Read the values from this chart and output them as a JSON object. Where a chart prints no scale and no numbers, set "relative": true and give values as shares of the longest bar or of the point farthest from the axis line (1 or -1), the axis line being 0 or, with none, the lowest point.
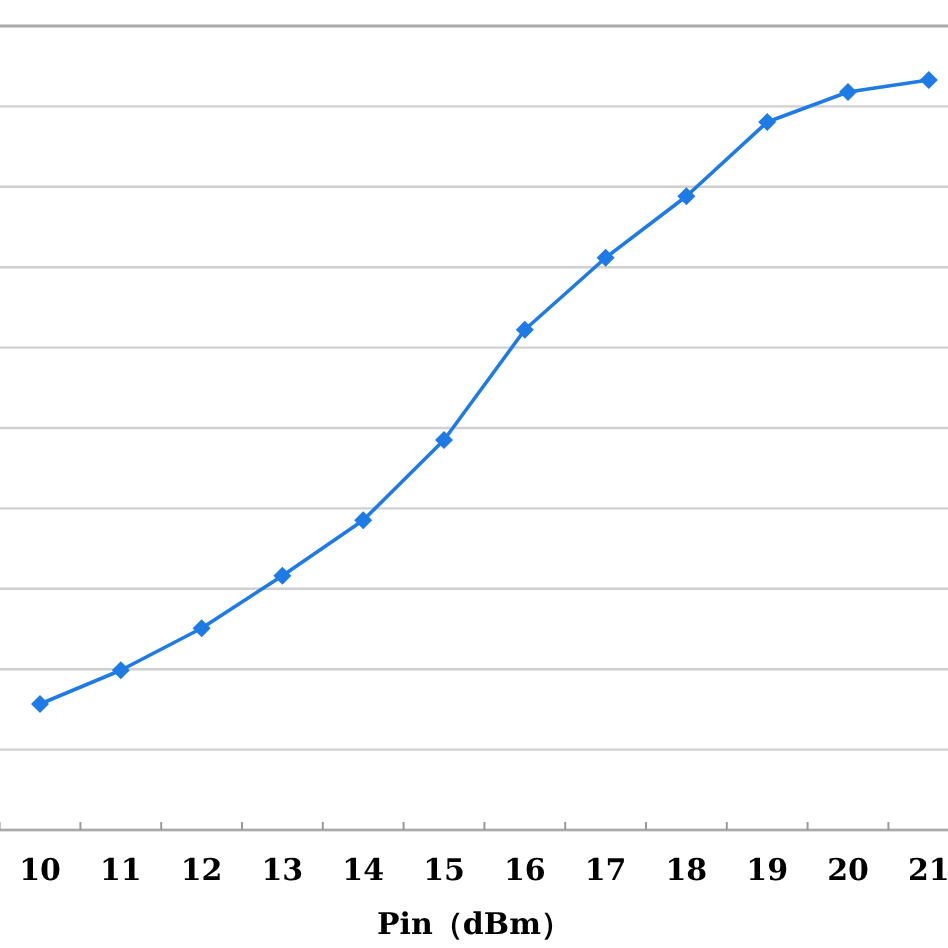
{
  "chart_data": {
    "type": "line",
    "xlabel": "Pin（dBm）",
    "categories": [
      "10",
      "11",
      "12",
      "13",
      "14",
      "15",
      "16",
      "17",
      "18",
      "19",
      "20",
      "21"
    ],
    "relative": true,
    "series": [
      {
        "color": "#1e7be6",
        "values": [
          0.168,
          0.213,
          0.269,
          0.339,
          0.413,
          0.52,
          0.667,
          0.763,
          0.845,
          0.944,
          0.984,
          1
        ]
      }
    ],
    "marker": "diamond",
    "line_style": "solid",
    "grid": "y"
  }
}
